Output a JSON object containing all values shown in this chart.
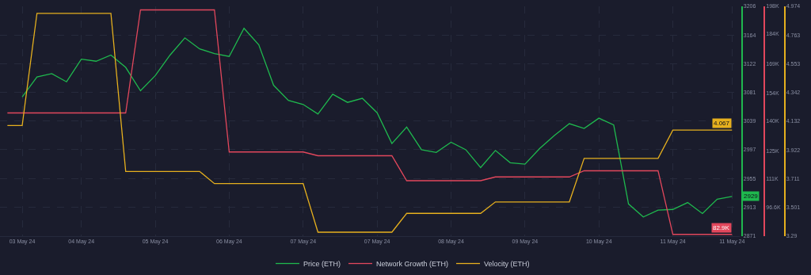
{
  "chart_data": {
    "type": "line",
    "categories": [
      null,
      "03 May 24",
      null,
      null,
      null,
      "04 May 24",
      null,
      null,
      null,
      null,
      "05 May 24",
      null,
      null,
      null,
      null,
      "06 May 24",
      null,
      null,
      null,
      null,
      "07 May 24",
      null,
      null,
      null,
      null,
      "07 May 24",
      null,
      null,
      null,
      null,
      "08 May 24",
      null,
      null,
      null,
      null,
      "09 May 24",
      null,
      null,
      null,
      null,
      "10 May 24",
      null,
      null,
      null,
      null,
      "11 May 24",
      null,
      null,
      null,
      "11 May 24"
    ],
    "ylim": [
      2871,
      3206
    ],
    "yticks": [
      2871,
      2913,
      2955,
      2997,
      3039,
      3081,
      3122,
      3164,
      3206
    ],
    "y2lim": [
      82,
      198
    ],
    "y2ticks": [
      {
        "value": 96.6,
        "label": "96.6K"
      },
      {
        "value": 111,
        "label": "111K"
      },
      {
        "value": 125,
        "label": "125K"
      },
      {
        "value": 140,
        "label": "140K"
      },
      {
        "value": 154,
        "label": "154K"
      },
      {
        "value": 169,
        "label": "169K"
      },
      {
        "value": 184,
        "label": "184K"
      },
      {
        "value": 198,
        "label": "198K"
      }
    ],
    "y3lim": [
      3.29,
      4.974
    ],
    "y3ticks": [
      3.29,
      3.501,
      3.711,
      3.922,
      4.132,
      4.342,
      4.553,
      4.763,
      4.974
    ],
    "grid": true,
    "legend": "bottom",
    "marker": "none",
    "line_style": "solid",
    "series": [
      {
        "name": "Price (ETH)",
        "color": "#1fb84e",
        "axis": "y",
        "values": [
          null,
          3074,
          3103,
          3108,
          3096,
          3129,
          3126,
          3135,
          3117,
          3083,
          3105,
          3135,
          3160,
          3144,
          3137,
          3133,
          3174,
          3150,
          3091,
          3069,
          3063,
          3049,
          3078,
          3066,
          3072,
          3051,
          3006,
          3030,
          2997,
          2993,
          3008,
          2997,
          2971,
          2996,
          2978,
          2976,
          2999,
          3018,
          3035,
          3028,
          3043,
          3033,
          2918,
          2899,
          2909,
          2910,
          2920,
          2904,
          2925,
          2929
        ],
        "value_labels": [
          null,
          null,
          null,
          null,
          null,
          null,
          null,
          null,
          null,
          null,
          null,
          null,
          null,
          null,
          null,
          null,
          null,
          null,
          null,
          null,
          null,
          null,
          null,
          null,
          null,
          null,
          null,
          null,
          null,
          null,
          null,
          null,
          null,
          null,
          null,
          null,
          null,
          null,
          null,
          null,
          null,
          null,
          null,
          null,
          null,
          null,
          null,
          null,
          null,
          "2929"
        ]
      },
      {
        "name": "Network Growth (ETH)",
        "color": "#e2475c",
        "axis": "y2",
        "values": [
          144.2,
          144.2,
          144.2,
          144.2,
          144.2,
          144.2,
          144.2,
          144.2,
          144.2,
          196.2,
          196.2,
          196.2,
          196.2,
          196.2,
          196.2,
          124.5,
          124.5,
          124.5,
          124.5,
          124.5,
          124.5,
          122.6,
          122.6,
          122.6,
          122.6,
          122.6,
          122.6,
          110,
          110,
          110,
          110,
          110,
          110,
          111.9,
          111.9,
          111.9,
          111.9,
          111.9,
          111.9,
          115,
          115,
          115,
          115,
          115,
          115,
          82.9,
          82.9,
          82.9,
          82.9,
          82.9
        ],
        "value_labels": [
          null,
          null,
          null,
          null,
          null,
          null,
          null,
          null,
          null,
          null,
          null,
          null,
          null,
          null,
          null,
          null,
          null,
          null,
          null,
          null,
          null,
          null,
          null,
          null,
          null,
          null,
          null,
          null,
          null,
          null,
          null,
          null,
          null,
          null,
          null,
          null,
          null,
          null,
          null,
          null,
          null,
          null,
          null,
          null,
          null,
          null,
          null,
          null,
          null,
          "82.9K"
        ]
      },
      {
        "name": "Velocity (ETH)",
        "color": "#e6b01e",
        "axis": "y3",
        "values": [
          4.101,
          4.101,
          4.923,
          4.923,
          4.923,
          4.923,
          4.923,
          4.923,
          3.764,
          3.764,
          3.764,
          3.764,
          3.764,
          3.764,
          3.675,
          3.675,
          3.675,
          3.675,
          3.675,
          3.675,
          3.675,
          3.319,
          3.319,
          3.319,
          3.319,
          3.319,
          3.319,
          3.457,
          3.457,
          3.457,
          3.457,
          3.457,
          3.457,
          3.541,
          3.541,
          3.541,
          3.541,
          3.541,
          3.541,
          3.86,
          3.86,
          3.86,
          3.86,
          3.86,
          3.86,
          4.067,
          4.067,
          4.067,
          4.067,
          4.067
        ],
        "value_labels": [
          null,
          null,
          null,
          null,
          null,
          null,
          null,
          null,
          null,
          null,
          null,
          null,
          null,
          null,
          null,
          null,
          null,
          null,
          null,
          null,
          null,
          null,
          null,
          null,
          null,
          null,
          null,
          null,
          null,
          null,
          null,
          null,
          null,
          null,
          null,
          null,
          null,
          null,
          null,
          null,
          null,
          null,
          null,
          null,
          null,
          null,
          null,
          null,
          null,
          "4.067"
        ]
      }
    ]
  }
}
